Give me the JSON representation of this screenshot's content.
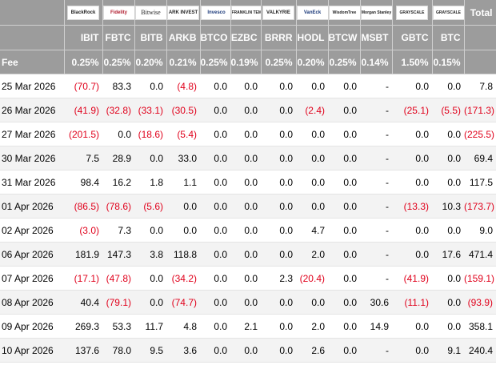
{
  "header": {
    "logos": [
      "BlackRock",
      "Fidelity",
      "Bitwise",
      "ARK INVEST",
      "Invesco",
      "FRANKLIN TEMPLETON",
      "VALKYRIE",
      "VanEck",
      "WisdomTree",
      "Morgan Stanley",
      "GRAYSCALE",
      "GRAYSCALE"
    ],
    "total_label": "Total",
    "tickers": [
      "IBIT",
      "FBTC",
      "BITB",
      "ARKB",
      "BTCO",
      "EZBC",
      "BRRR",
      "HODL",
      "BTCW",
      "MSBT",
      "GBTC",
      "BTC"
    ],
    "fee_label": "Fee",
    "fees": [
      "0.25%",
      "0.25%",
      "0.20%",
      "0.21%",
      "0.25%",
      "0.19%",
      "0.25%",
      "0.20%",
      "0.25%",
      "0.14%",
      "1.50%",
      "0.15%"
    ]
  },
  "rows": [
    {
      "date": "25 Mar 2026",
      "cells": [
        "(70.7)",
        "83.3",
        "0.0",
        "(4.8)",
        "0.0",
        "0.0",
        "0.0",
        "0.0",
        "0.0",
        "-",
        "0.0",
        "0.0"
      ],
      "total": "7.8"
    },
    {
      "date": "26 Mar 2026",
      "cells": [
        "(41.9)",
        "(32.8)",
        "(33.1)",
        "(30.5)",
        "0.0",
        "0.0",
        "0.0",
        "(2.4)",
        "0.0",
        "-",
        "(25.1)",
        "(5.5)"
      ],
      "total": "(171.3)"
    },
    {
      "date": "27 Mar 2026",
      "cells": [
        "(201.5)",
        "0.0",
        "(18.6)",
        "(5.4)",
        "0.0",
        "0.0",
        "0.0",
        "0.0",
        "0.0",
        "-",
        "0.0",
        "0.0"
      ],
      "total": "(225.5)"
    },
    {
      "date": "30 Mar 2026",
      "cells": [
        "7.5",
        "28.9",
        "0.0",
        "33.0",
        "0.0",
        "0.0",
        "0.0",
        "0.0",
        "0.0",
        "-",
        "0.0",
        "0.0"
      ],
      "total": "69.4"
    },
    {
      "date": "31 Mar 2026",
      "cells": [
        "98.4",
        "16.2",
        "1.8",
        "1.1",
        "0.0",
        "0.0",
        "0.0",
        "0.0",
        "0.0",
        "-",
        "0.0",
        "0.0"
      ],
      "total": "117.5"
    },
    {
      "date": "01 Apr 2026",
      "cells": [
        "(86.5)",
        "(78.6)",
        "(5.6)",
        "0.0",
        "0.0",
        "0.0",
        "0.0",
        "0.0",
        "0.0",
        "-",
        "(13.3)",
        "10.3"
      ],
      "total": "(173.7)"
    },
    {
      "date": "02 Apr 2026",
      "cells": [
        "(3.0)",
        "7.3",
        "0.0",
        "0.0",
        "0.0",
        "0.0",
        "0.0",
        "4.7",
        "0.0",
        "-",
        "0.0",
        "0.0"
      ],
      "total": "9.0"
    },
    {
      "date": "06 Apr 2026",
      "cells": [
        "181.9",
        "147.3",
        "3.8",
        "118.8",
        "0.0",
        "0.0",
        "0.0",
        "2.0",
        "0.0",
        "-",
        "0.0",
        "17.6"
      ],
      "total": "471.4"
    },
    {
      "date": "07 Apr 2026",
      "cells": [
        "(17.1)",
        "(47.8)",
        "0.0",
        "(34.2)",
        "0.0",
        "0.0",
        "2.3",
        "(20.4)",
        "0.0",
        "-",
        "(41.9)",
        "0.0"
      ],
      "total": "(159.1)"
    },
    {
      "date": "08 Apr 2026",
      "cells": [
        "40.4",
        "(79.1)",
        "0.0",
        "(74.7)",
        "0.0",
        "0.0",
        "0.0",
        "0.0",
        "0.0",
        "30.6",
        "(11.1)",
        "0.0"
      ],
      "total": "(93.9)"
    },
    {
      "date": "09 Apr 2026",
      "cells": [
        "269.3",
        "53.3",
        "11.7",
        "4.8",
        "0.0",
        "2.1",
        "0.0",
        "2.0",
        "0.0",
        "14.9",
        "0.0",
        "0.0"
      ],
      "total": "358.1"
    },
    {
      "date": "10 Apr 2026",
      "cells": [
        "137.6",
        "78.0",
        "9.5",
        "3.6",
        "0.0",
        "0.0",
        "0.0",
        "2.6",
        "0.0",
        "-",
        "0.0",
        "9.1"
      ],
      "total": "240.4"
    }
  ],
  "colors": {
    "header_bg": "#9c9c9c",
    "negative": "#e0001b",
    "stripe": "#f3f3f3"
  }
}
